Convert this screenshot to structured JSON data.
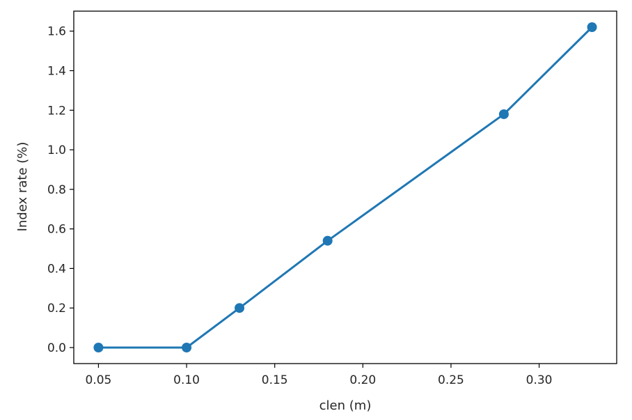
{
  "chart_data": {
    "type": "line",
    "title": "",
    "xlabel": "clen (m)",
    "ylabel": "Index rate (%)",
    "xlim": [
      0.036,
      0.344
    ],
    "ylim": [
      -0.081,
      1.701
    ],
    "xticks": [
      "0.05",
      "0.10",
      "0.15",
      "0.20",
      "0.25",
      "0.30"
    ],
    "yticks": [
      "0.0",
      "0.2",
      "0.4",
      "0.6",
      "0.8",
      "1.0",
      "1.2",
      "1.4",
      "1.6"
    ],
    "grid": false,
    "series": [
      {
        "color": "#1f77b4",
        "x": [
          0.05,
          0.1,
          0.13,
          0.18,
          0.28,
          0.33
        ],
        "y": [
          0.0,
          0.0,
          0.2,
          0.54,
          1.18,
          1.62
        ]
      }
    ]
  }
}
